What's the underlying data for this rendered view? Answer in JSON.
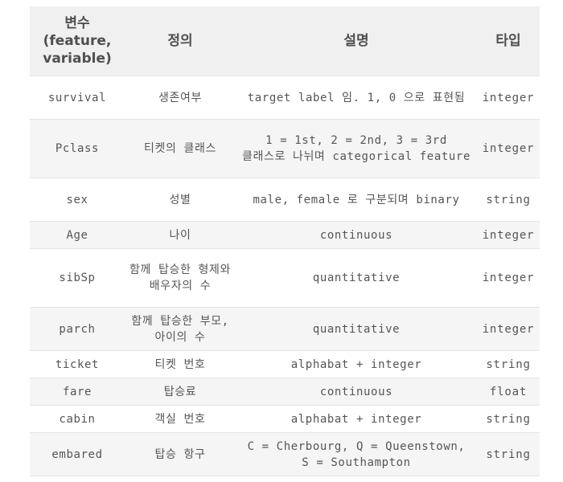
{
  "table": {
    "headers": [
      "변수\n(feature,\nvariable)",
      "정의",
      "설명",
      "타입"
    ],
    "rows": [
      {
        "var": "survival",
        "def": "생존여부",
        "desc": "target label 임. 1, 0 으로 표현됨",
        "type": "integer"
      },
      {
        "var": "Pclass",
        "def": "티켓의 클래스",
        "desc": "1 = 1st, 2 = 2nd, 3 = 3rd 클래스로 나뉘며 categorical feature",
        "type": "integer"
      },
      {
        "var": "sex",
        "def": "성별",
        "desc": "male, female 로 구분되며 binary",
        "type": "string"
      },
      {
        "var": "Age",
        "def": "나이",
        "desc": "continuous",
        "type": "integer"
      },
      {
        "var": "sibSp",
        "def": "함께 탑승한 형제와 배우자의 수",
        "desc": "quantitative",
        "type": "integer"
      },
      {
        "var": "parch",
        "def": "함께 탑승한 부모, 아이의 수",
        "desc": "quantitative",
        "type": "integer"
      },
      {
        "var": "ticket",
        "def": "티켓 번호",
        "desc": "alphabat + integer",
        "type": "string"
      },
      {
        "var": "fare",
        "def": "탑승료",
        "desc": "continuous",
        "type": "float"
      },
      {
        "var": "cabin",
        "def": "객실 번호",
        "desc": "alphabat + integer",
        "type": "string"
      },
      {
        "var": "embared",
        "def": "탑승 항구",
        "desc": "C = Cherbourg, Q = Queenstown, S = Southampton",
        "type": "string"
      }
    ]
  },
  "colors": {
    "header_bg": "#f0f0f0",
    "row_alt_bg": "#f5f5f5",
    "text": "#555555",
    "header_text": "#4f4f4f"
  }
}
